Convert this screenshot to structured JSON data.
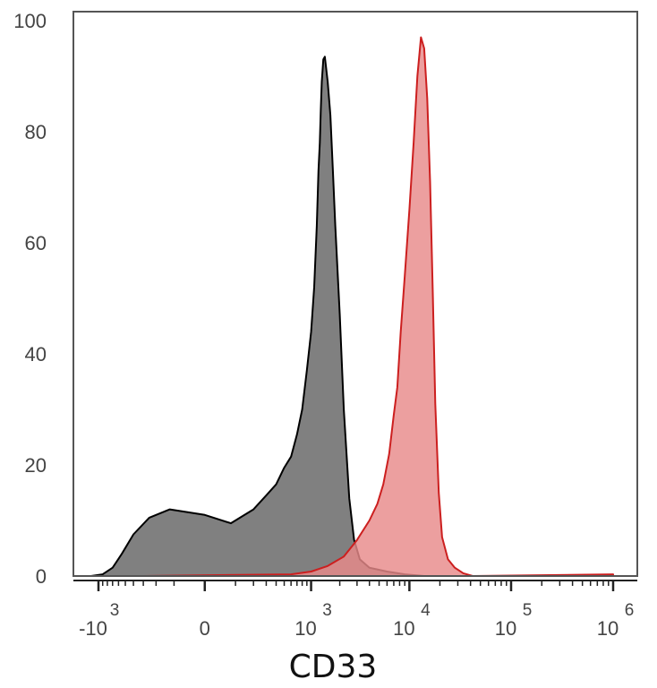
{
  "chart_data": {
    "type": "area",
    "xlabel": "CD33",
    "ylabel": "",
    "x_scale": "biexponential",
    "ylim": [
      0,
      100
    ],
    "grid": false,
    "y_ticks": [
      {
        "value": 0,
        "label": "0"
      },
      {
        "value": 20,
        "label": "20"
      },
      {
        "value": 40,
        "label": "40"
      },
      {
        "value": 60,
        "label": "60"
      },
      {
        "value": 80,
        "label": "80"
      },
      {
        "value": 100,
        "label": "100"
      }
    ],
    "x_ticks": [
      {
        "value": -1000,
        "base": "-10",
        "exp": "3"
      },
      {
        "value": 0,
        "base": "0",
        "exp": ""
      },
      {
        "value": 1000,
        "base": "10",
        "exp": "3"
      },
      {
        "value": 10000,
        "base": "10",
        "exp": "4"
      },
      {
        "value": 100000,
        "base": "10",
        "exp": "5"
      },
      {
        "value": 1000000,
        "base": "10",
        "exp": "6"
      }
    ],
    "series": [
      {
        "color": "#000000",
        "fill": "#808080",
        "points": [
          [
            -1200,
            0
          ],
          [
            -900,
            0.3
          ],
          [
            -700,
            1.5
          ],
          [
            -550,
            4
          ],
          [
            -400,
            7.5
          ],
          [
            -250,
            10.5
          ],
          [
            -120,
            12
          ],
          [
            0,
            11
          ],
          [
            80,
            9.5
          ],
          [
            200,
            12
          ],
          [
            300,
            14.5
          ],
          [
            400,
            16.5
          ],
          [
            500,
            19.5
          ],
          [
            600,
            21.5
          ],
          [
            700,
            25.5
          ],
          [
            800,
            30
          ],
          [
            900,
            37
          ],
          [
            1000,
            44
          ],
          [
            1080,
            52
          ],
          [
            1150,
            63
          ],
          [
            1200,
            73
          ],
          [
            1240,
            78
          ],
          [
            1270,
            84
          ],
          [
            1300,
            89
          ],
          [
            1350,
            93
          ],
          [
            1400,
            93.5
          ],
          [
            1500,
            89
          ],
          [
            1600,
            83
          ],
          [
            1700,
            73
          ],
          [
            1800,
            63
          ],
          [
            2000,
            47
          ],
          [
            2200,
            30
          ],
          [
            2500,
            14
          ],
          [
            2800,
            6.5
          ],
          [
            3200,
            3
          ],
          [
            4000,
            1.5
          ],
          [
            6000,
            0.8
          ],
          [
            9000,
            0.3
          ],
          [
            14000,
            0
          ]
        ]
      },
      {
        "color": "#cc1f1f",
        "fill": "#e88a8a",
        "points": [
          [
            -300,
            0
          ],
          [
            600,
            0.3
          ],
          [
            1000,
            0.8
          ],
          [
            1500,
            1.8
          ],
          [
            2200,
            3.5
          ],
          [
            3000,
            6.5
          ],
          [
            4000,
            10
          ],
          [
            4800,
            13
          ],
          [
            5500,
            16.5
          ],
          [
            6300,
            22
          ],
          [
            7000,
            29
          ],
          [
            7600,
            34
          ],
          [
            8200,
            44
          ],
          [
            9000,
            54
          ],
          [
            10000,
            66
          ],
          [
            11000,
            78
          ],
          [
            12000,
            90
          ],
          [
            13000,
            97
          ],
          [
            14000,
            95
          ],
          [
            15000,
            86
          ],
          [
            16000,
            71
          ],
          [
            17000,
            51
          ],
          [
            18000,
            31
          ],
          [
            19500,
            15
          ],
          [
            21000,
            7
          ],
          [
            24000,
            3
          ],
          [
            28000,
            1.5
          ],
          [
            34000,
            0.5
          ],
          [
            42000,
            0
          ],
          [
            1000000,
            0.3
          ]
        ]
      }
    ]
  }
}
